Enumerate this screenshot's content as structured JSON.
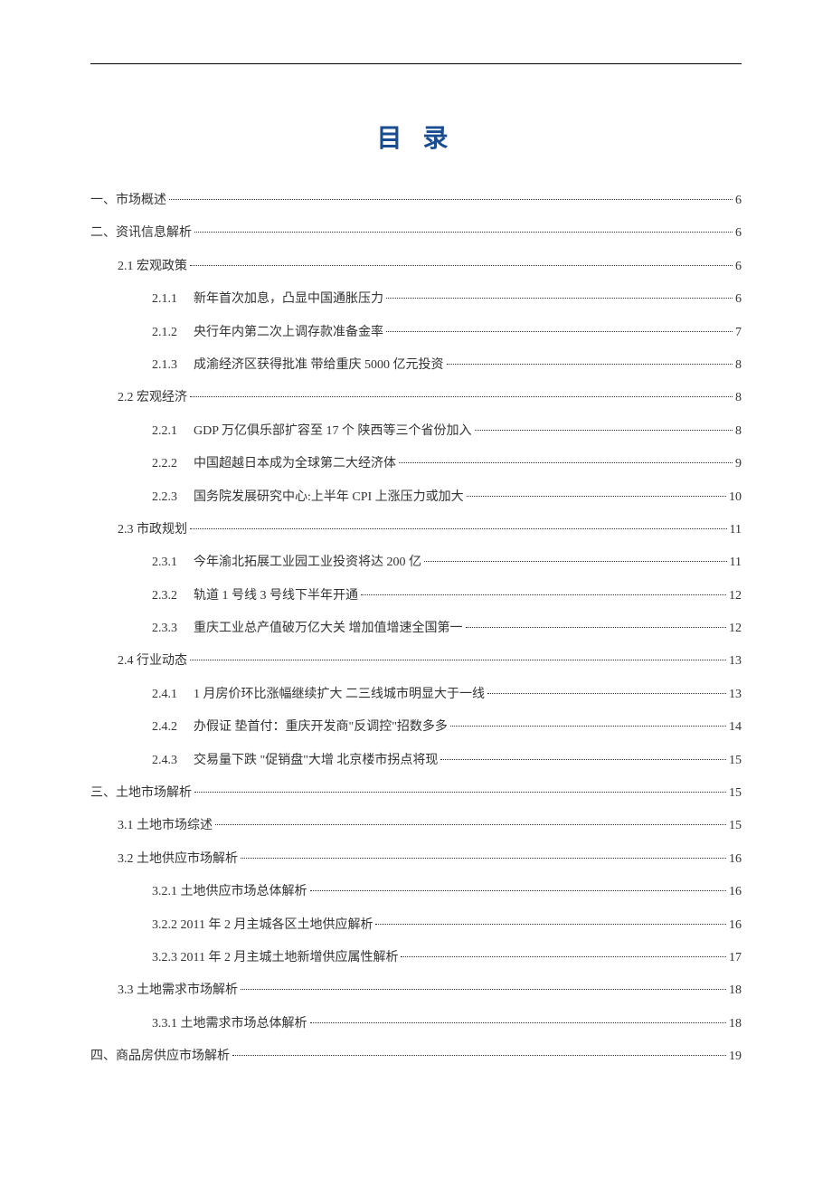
{
  "title": "目 录",
  "colors": {
    "title_color": "#1a4d8f",
    "text_color": "#333333",
    "background": "#ffffff",
    "line_color": "#000000"
  },
  "typography": {
    "title_fontsize": 28,
    "body_fontsize": 14
  },
  "toc": [
    {
      "level": 0,
      "num": "一、",
      "text": "市场概述",
      "page": "6"
    },
    {
      "level": 0,
      "num": "二、",
      "text": "资讯信息解析",
      "page": "6"
    },
    {
      "level": 1,
      "num": "2.1",
      "text": " 宏观政策",
      "page": "6"
    },
    {
      "level": 2,
      "num": "2.1.1",
      "text": "新年首次加息，凸显中国通胀压力",
      "page": "6"
    },
    {
      "level": 2,
      "num": "2.1.2",
      "text": "央行年内第二次上调存款准备金率",
      "page": "7"
    },
    {
      "level": 2,
      "num": "2.1.3",
      "text": "成渝经济区获得批准 带给重庆 5000 亿元投资",
      "page": "8"
    },
    {
      "level": 1,
      "num": "2.2",
      "text": " 宏观经济",
      "page": "8"
    },
    {
      "level": 2,
      "num": "2.2.1",
      "text": "GDP 万亿俱乐部扩容至 17 个 陕西等三个省份加入",
      "page": "8"
    },
    {
      "level": 2,
      "num": "2.2.2",
      "text": "中国超越日本成为全球第二大经济体",
      "page": "9"
    },
    {
      "level": 2,
      "num": "2.2.3",
      "text": "国务院发展研究中心:上半年 CPI 上涨压力或加大",
      "page": "10"
    },
    {
      "level": 1,
      "num": "2.3",
      "text": " 市政规划",
      "page": "11"
    },
    {
      "level": 2,
      "num": "2.3.1",
      "text": "今年渝北拓展工业园工业投资将达 200 亿",
      "page": "11"
    },
    {
      "level": 2,
      "num": "2.3.2",
      "text": "轨道 1 号线 3 号线下半年开通",
      "page": "12"
    },
    {
      "level": 2,
      "num": "2.3.3",
      "text": "重庆工业总产值破万亿大关 增加值增速全国第一",
      "page": "12"
    },
    {
      "level": 1,
      "num": "2.4",
      "text": " 行业动态",
      "page": "13"
    },
    {
      "level": 2,
      "num": "2.4.1",
      "text": "1 月房价环比涨幅继续扩大 二三线城市明显大于一线",
      "page": "13"
    },
    {
      "level": 2,
      "num": "2.4.2",
      "text": "办假证 垫首付：重庆开发商\"反调控\"招数多多",
      "page": "14"
    },
    {
      "level": 2,
      "num": "2.4.3",
      "text": "交易量下跌 \"促销盘\"大增 北京楼市拐点将现",
      "page": "15"
    },
    {
      "level": 0,
      "num": "三、",
      "text": "土地市场解析",
      "page": "15"
    },
    {
      "level": 1,
      "num": "3.1",
      "text": " 土地市场综述",
      "page": "15"
    },
    {
      "level": 1,
      "num": "3.2",
      "text": " 土地供应市场解析",
      "page": "16"
    },
    {
      "level": 2,
      "num": "3.2.1",
      "text": " 土地供应市场总体解析",
      "page": "16"
    },
    {
      "level": 2,
      "num": "3.2.2",
      "text": " 2011 年 2 月主城各区土地供应解析",
      "page": "16"
    },
    {
      "level": 2,
      "num": "3.2.3",
      "text": " 2011 年 2 月主城土地新增供应属性解析",
      "page": "17"
    },
    {
      "level": 1,
      "num": "3.3",
      "text": " 土地需求市场解析",
      "page": "18"
    },
    {
      "level": 2,
      "num": "3.3.1",
      "text": " 土地需求市场总体解析",
      "page": "18"
    },
    {
      "level": 0,
      "num": "四、",
      "text": "商品房供应市场解析",
      "page": "19"
    }
  ]
}
